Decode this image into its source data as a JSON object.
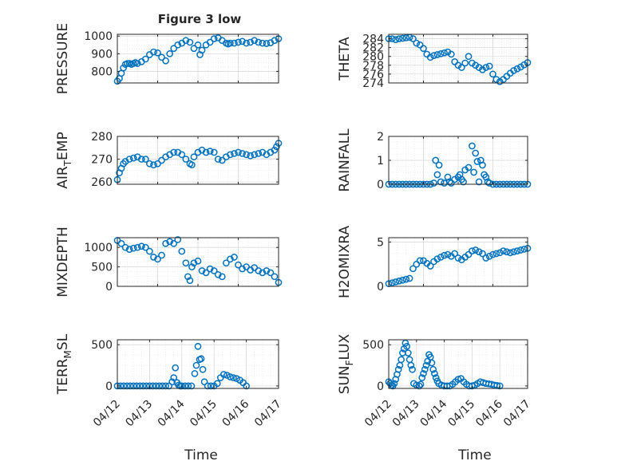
{
  "figure": {
    "title": "Figure 3 low",
    "colors": {
      "marker": "#0072BD",
      "axis": "#262626",
      "grid": "#cccccc",
      "background": "#ffffff"
    }
  },
  "chart_data": [
    {
      "type": "scatter",
      "id": "pressure",
      "ylabel": "PRESSURE",
      "ylabel_sub": "",
      "yticks": [
        800,
        900,
        1000
      ],
      "ylim": [
        735,
        1010
      ],
      "xlim": [
        "04/12",
        "04/16"
      ],
      "xticklabels": [],
      "xlabel": "",
      "grid": true,
      "marker": "circle",
      "x": [
        0.0,
        0.05,
        0.1,
        0.15,
        0.2,
        0.25,
        0.3,
        0.35,
        0.4,
        0.45,
        0.5,
        0.6,
        0.7,
        0.8,
        0.9,
        1.0,
        1.1,
        1.2,
        1.3,
        1.4,
        1.5,
        1.6,
        1.7,
        1.8,
        1.9,
        2.0,
        2.05,
        2.1,
        2.2,
        2.3,
        2.4,
        2.5,
        2.6,
        2.7,
        2.75,
        2.8,
        2.9,
        3.0,
        3.1,
        3.2,
        3.3,
        3.4,
        3.5,
        3.6,
        3.7,
        3.8,
        3.9,
        4.0
      ],
      "y": [
        745,
        760,
        790,
        820,
        840,
        845,
        845,
        840,
        845,
        850,
        845,
        855,
        870,
        895,
        910,
        905,
        880,
        860,
        900,
        930,
        950,
        960,
        975,
        965,
        930,
        950,
        895,
        920,
        950,
        965,
        985,
        990,
        975,
        960,
        955,
        960,
        960,
        965,
        970,
        960,
        965,
        975,
        965,
        960,
        958,
        962,
        975,
        985
      ]
    },
    {
      "type": "scatter",
      "id": "theta",
      "ylabel": "THETA",
      "ylabel_sub": "",
      "yticks": [
        274,
        276,
        278,
        280,
        282,
        284
      ],
      "ylim": [
        274,
        285
      ],
      "xlim": [
        "04/12",
        "04/17"
      ],
      "xticklabels": [],
      "xlabel": "",
      "grid": true,
      "marker": "circle",
      "x": [
        0.0,
        0.1,
        0.2,
        0.3,
        0.4,
        0.5,
        0.6,
        0.7,
        0.8,
        0.9,
        1.0,
        1.1,
        1.2,
        1.3,
        1.4,
        1.5,
        1.6,
        1.7,
        1.8,
        1.9,
        2.0,
        2.1,
        2.2,
        2.3,
        2.4,
        2.5,
        2.6,
        2.7,
        2.8,
        2.9,
        3.0,
        3.1,
        3.2,
        3.3,
        3.4,
        3.5,
        3.6,
        3.7,
        3.8,
        3.9,
        4.0
      ],
      "y": [
        284.0,
        284.0,
        283.8,
        284.0,
        284.1,
        284.2,
        284.3,
        284.0,
        283.0,
        282.6,
        281.8,
        280.5,
        279.8,
        280.2,
        280.4,
        280.6,
        280.8,
        281.0,
        280.5,
        278.8,
        278.0,
        277.5,
        278.5,
        280.0,
        278.5,
        278.0,
        277.5,
        277.0,
        277.5,
        277.8,
        276.0,
        274.8,
        274.3,
        274.8,
        275.5,
        276.2,
        276.8,
        277.2,
        277.6,
        278.1,
        278.6
      ]
    },
    {
      "type": "scatter",
      "id": "air_temp",
      "ylabel": "AIR",
      "ylabel_sub": "T",
      "ylabel_suffix": "EMP",
      "yticks": [
        260,
        270,
        280
      ],
      "ylim": [
        259,
        280
      ],
      "xlim": [
        "04/12",
        "04/16"
      ],
      "xticklabels": [],
      "xlabel": "",
      "grid": true,
      "marker": "circle",
      "x": [
        0.0,
        0.05,
        0.1,
        0.15,
        0.2,
        0.3,
        0.4,
        0.5,
        0.6,
        0.7,
        0.8,
        0.9,
        1.0,
        1.1,
        1.2,
        1.3,
        1.4,
        1.5,
        1.6,
        1.7,
        1.8,
        1.85,
        1.9,
        2.0,
        2.1,
        2.2,
        2.3,
        2.4,
        2.5,
        2.6,
        2.7,
        2.8,
        2.9,
        3.0,
        3.1,
        3.2,
        3.3,
        3.4,
        3.5,
        3.6,
        3.7,
        3.8,
        3.9,
        3.95,
        4.0
      ],
      "y": [
        261,
        264,
        266,
        268,
        269,
        270,
        270.5,
        271,
        270,
        270,
        268,
        267.5,
        268,
        269.5,
        271,
        272,
        273,
        273,
        272,
        270,
        268,
        267.5,
        271,
        273,
        274,
        273,
        273.5,
        273,
        270,
        269.5,
        271,
        272,
        272.5,
        273,
        272.5,
        272,
        271.5,
        272,
        272.5,
        273,
        272,
        273,
        274,
        275.5,
        277
      ]
    },
    {
      "type": "scatter",
      "id": "rainfall",
      "ylabel": "RAINFALL",
      "ylabel_sub": "",
      "yticks": [
        0,
        1,
        2
      ],
      "ylim": [
        0,
        2
      ],
      "xlim": [
        "04/12",
        "04/17"
      ],
      "xticklabels": [],
      "xlabel": "",
      "grid": true,
      "marker": "circle",
      "x": [
        0.0,
        0.1,
        0.2,
        0.3,
        0.4,
        0.5,
        0.6,
        0.7,
        0.8,
        0.9,
        1.0,
        1.1,
        1.2,
        1.3,
        1.35,
        1.4,
        1.45,
        1.5,
        1.6,
        1.7,
        1.75,
        1.8,
        1.9,
        2.0,
        2.05,
        2.1,
        2.15,
        2.2,
        2.3,
        2.4,
        2.45,
        2.5,
        2.55,
        2.6,
        2.65,
        2.7,
        2.75,
        2.8,
        2.85,
        2.9,
        3.0,
        3.1,
        3.2,
        3.3,
        3.4,
        3.5,
        3.6,
        3.7,
        3.8,
        3.9,
        4.0
      ],
      "y": [
        0,
        0,
        0,
        0,
        0,
        0,
        0,
        0,
        0,
        0,
        0,
        0,
        0,
        0.05,
        1.0,
        0.4,
        0.8,
        0.1,
        0.05,
        0.3,
        0.1,
        0.05,
        0.2,
        0.3,
        0.4,
        0.2,
        0.1,
        0.6,
        0.7,
        1.6,
        0.5,
        1.3,
        0.95,
        0.1,
        1.0,
        0.8,
        0.4,
        0.3,
        0.1,
        0.05,
        0,
        0,
        0,
        0,
        0,
        0,
        0,
        0,
        0,
        0,
        0
      ]
    },
    {
      "type": "scatter",
      "id": "mixdepth",
      "ylabel": "MIXDEPTH",
      "ylabel_sub": "",
      "yticks": [
        0,
        500,
        1000
      ],
      "ylim": [
        0,
        1250
      ],
      "xlim": [
        "04/12",
        "04/16"
      ],
      "xticklabels": [],
      "xlabel": "",
      "grid": true,
      "marker": "circle",
      "x": [
        0.0,
        0.1,
        0.2,
        0.3,
        0.4,
        0.5,
        0.6,
        0.7,
        0.8,
        0.9,
        1.0,
        1.1,
        1.2,
        1.3,
        1.4,
        1.5,
        1.6,
        1.7,
        1.75,
        1.8,
        1.85,
        1.9,
        2.0,
        2.1,
        2.2,
        2.3,
        2.4,
        2.5,
        2.6,
        2.7,
        2.8,
        2.9,
        3.0,
        3.1,
        3.2,
        3.3,
        3.4,
        3.5,
        3.6,
        3.7,
        3.8,
        3.9,
        4.0
      ],
      "y": [
        1180,
        1100,
        1000,
        950,
        980,
        1000,
        1030,
        1000,
        900,
        750,
        700,
        800,
        1100,
        1150,
        1100,
        1200,
        900,
        600,
        250,
        150,
        500,
        600,
        650,
        400,
        350,
        450,
        400,
        300,
        250,
        600,
        700,
        750,
        550,
        450,
        500,
        420,
        480,
        400,
        350,
        400,
        350,
        250,
        100
      ]
    },
    {
      "type": "scatter",
      "id": "h2omixra",
      "ylabel": "H2OMIXRA",
      "ylabel_sub": "",
      "yticks": [
        0,
        5
      ],
      "ylim": [
        0,
        5.5
      ],
      "xlim": [
        "04/12",
        "04/17"
      ],
      "xticklabels": [],
      "xlabel": "",
      "grid": true,
      "marker": "circle",
      "x": [
        0.0,
        0.1,
        0.2,
        0.3,
        0.4,
        0.5,
        0.6,
        0.7,
        0.8,
        0.9,
        1.0,
        1.1,
        1.2,
        1.3,
        1.4,
        1.5,
        1.6,
        1.7,
        1.8,
        1.9,
        2.0,
        2.1,
        2.2,
        2.3,
        2.4,
        2.5,
        2.6,
        2.7,
        2.8,
        2.9,
        3.0,
        3.1,
        3.2,
        3.3,
        3.4,
        3.5,
        3.6,
        3.7,
        3.8,
        3.9,
        4.0
      ],
      "y": [
        0.3,
        0.4,
        0.5,
        0.6,
        0.7,
        0.8,
        0.9,
        2.0,
        2.5,
        2.9,
        2.9,
        2.6,
        2.3,
        2.8,
        3.1,
        3.3,
        3.5,
        3.6,
        3.4,
        3.7,
        3.2,
        3.0,
        3.3,
        3.6,
        4.0,
        4.1,
        3.9,
        3.7,
        3.2,
        3.4,
        3.6,
        3.7,
        3.8,
        4.0,
        3.9,
        3.8,
        3.9,
        4.0,
        4.1,
        4.2,
        4.3
      ]
    },
    {
      "type": "scatter",
      "id": "terr_msl",
      "ylabel": "TERR",
      "ylabel_sub": "M",
      "ylabel_suffix": "SL",
      "yticks": [
        0,
        500
      ],
      "ylim": [
        -30,
        560
      ],
      "xlim": [
        "04/12",
        "04/17"
      ],
      "xticklabels": [
        "04/12",
        "04/13",
        "04/14",
        "04/15",
        "04/16",
        "04/17"
      ],
      "xlabel": "Time",
      "grid": true,
      "marker": "circle",
      "x": [
        0.0,
        0.1,
        0.2,
        0.3,
        0.4,
        0.5,
        0.6,
        0.7,
        0.8,
        0.9,
        1.0,
        1.1,
        1.2,
        1.3,
        1.4,
        1.5,
        1.6,
        1.7,
        1.75,
        1.8,
        1.85,
        1.9,
        1.95,
        2.0,
        2.1,
        2.2,
        2.3,
        2.4,
        2.45,
        2.5,
        2.55,
        2.6,
        2.65,
        2.7,
        2.8,
        2.9,
        3.0,
        3.1,
        3.2,
        3.3,
        3.4,
        3.5,
        3.6,
        3.7,
        3.8,
        3.9,
        4.0
      ],
      "y": [
        0,
        0,
        0,
        0,
        0,
        0,
        0,
        0,
        0,
        0,
        0,
        0,
        0,
        0,
        0,
        0,
        0,
        50,
        100,
        220,
        40,
        10,
        0,
        0,
        0,
        0,
        0,
        150,
        250,
        480,
        320,
        330,
        200,
        50,
        0,
        0,
        0,
        30,
        100,
        140,
        130,
        110,
        100,
        90,
        70,
        40,
        0
      ]
    },
    {
      "type": "scatter",
      "id": "sun_flux",
      "ylabel": "SUN",
      "ylabel_sub": "F",
      "ylabel_suffix": "LUX",
      "yticks": [
        0,
        500
      ],
      "ylim": [
        -30,
        560
      ],
      "xlim": [
        "04/12",
        "04/17"
      ],
      "xticklabels": [
        "04/12",
        "04/13",
        "04/14",
        "04/15",
        "04/16",
        "04/17"
      ],
      "xlabel": "Time",
      "grid": true,
      "marker": "circle",
      "x": [
        0.0,
        0.05,
        0.1,
        0.15,
        0.2,
        0.25,
        0.3,
        0.35,
        0.4,
        0.45,
        0.5,
        0.55,
        0.6,
        0.65,
        0.7,
        0.75,
        0.8,
        0.85,
        0.9,
        1.0,
        1.1,
        1.15,
        1.2,
        1.25,
        1.3,
        1.35,
        1.4,
        1.45,
        1.5,
        1.55,
        1.6,
        1.65,
        1.7,
        1.75,
        1.8,
        1.9,
        2.0,
        2.1,
        2.2,
        2.3,
        2.4,
        2.5,
        2.6,
        2.7,
        2.8,
        2.9,
        3.0,
        3.1,
        3.2,
        3.3,
        3.4,
        3.5,
        3.6,
        3.7,
        3.8,
        3.9,
        4.0
      ],
      "y": [
        50,
        30,
        10,
        0,
        30,
        80,
        140,
        200,
        250,
        320,
        400,
        450,
        520,
        480,
        400,
        320,
        250,
        200,
        30,
        10,
        0,
        20,
        100,
        150,
        200,
        250,
        300,
        380,
        350,
        280,
        200,
        150,
        100,
        60,
        30,
        10,
        0,
        0,
        0,
        20,
        50,
        80,
        90,
        50,
        20,
        0,
        0,
        10,
        30,
        50,
        40,
        30,
        25,
        20,
        10,
        5,
        0
      ]
    }
  ]
}
